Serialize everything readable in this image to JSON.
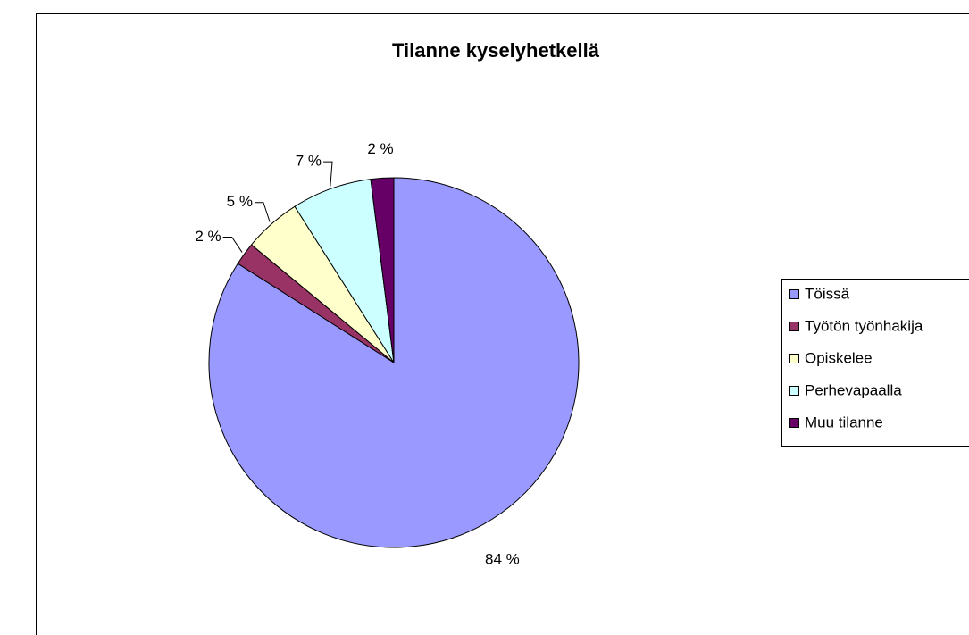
{
  "chart_data": {
    "type": "pie",
    "title": "Tilanne kyselyhetkellä",
    "categories": [
      "Töissä",
      "Työtön työnhakija",
      "Opiskelee",
      "Perhevapaalla",
      "Muu tilanne"
    ],
    "values": [
      84,
      2,
      5,
      7,
      2
    ],
    "value_labels": [
      "84 %",
      "2 %",
      "5 %",
      "7 %",
      "2 %"
    ],
    "colors": [
      "#9999ff",
      "#993366",
      "#ffffcc",
      "#ccffff",
      "#660066"
    ],
    "legend": "right"
  }
}
